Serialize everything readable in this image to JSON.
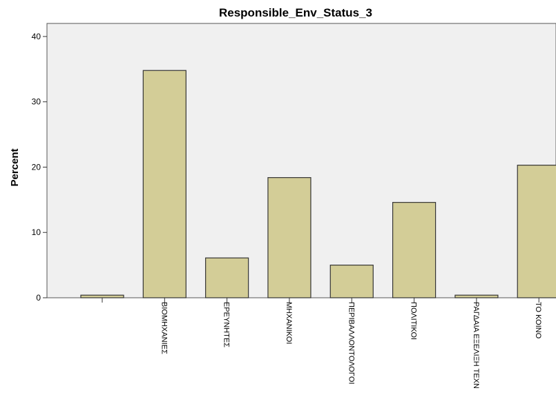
{
  "chart_data": {
    "type": "bar",
    "title": "Responsible_Env_Status_3",
    "xlabel": "",
    "ylabel": "Percent",
    "ylim": [
      0,
      42
    ],
    "yticks": [
      "0",
      "10",
      "20",
      "30",
      "40"
    ],
    "categories": [
      "",
      "ΒΙΟΜΗΧΑΝΙΕΣ",
      "ΕΡΕΥΝΗΤΕΣ",
      "ΜΗΧΑΝΙΚΟΙ",
      "ΠΕΡΙΒΑΛΛΟΝΤΟΛΟΓΟΙ",
      "ΠΟΛΙΤΙΚΟΙ",
      "ΡΑΓΔΑΙΑ ΕΞΕΛΙΞΗ ΤΕΧΝ",
      "ΤΟ ΚΟΙΝΟ"
    ],
    "values": [
      0.4,
      34.8,
      6.1,
      18.4,
      5.0,
      14.6,
      0.4,
      20.3
    ],
    "grid": false,
    "legend": "none",
    "bar_color": "#d3cd97",
    "bar_edge_color": "#333333",
    "plot_bg": "#f0f0f0"
  }
}
